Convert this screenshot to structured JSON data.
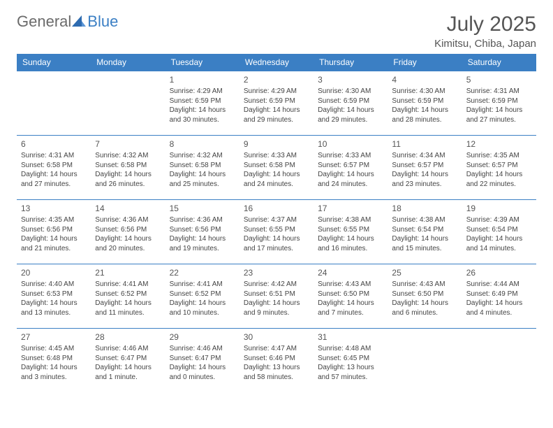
{
  "brand": {
    "name1": "General",
    "name2": "Blue"
  },
  "title": "July 2025",
  "location": "Kimitsu, Chiba, Japan",
  "colors": {
    "accent": "#3b7fc4",
    "text": "#444444",
    "headerText": "#ffffff",
    "bg": "#ffffff"
  },
  "daysOfWeek": [
    "Sunday",
    "Monday",
    "Tuesday",
    "Wednesday",
    "Thursday",
    "Friday",
    "Saturday"
  ],
  "weeks": [
    [
      null,
      null,
      {
        "n": "1",
        "sr": "4:29 AM",
        "ss": "6:59 PM",
        "dl": "14 hours and 30 minutes."
      },
      {
        "n": "2",
        "sr": "4:29 AM",
        "ss": "6:59 PM",
        "dl": "14 hours and 29 minutes."
      },
      {
        "n": "3",
        "sr": "4:30 AM",
        "ss": "6:59 PM",
        "dl": "14 hours and 29 minutes."
      },
      {
        "n": "4",
        "sr": "4:30 AM",
        "ss": "6:59 PM",
        "dl": "14 hours and 28 minutes."
      },
      {
        "n": "5",
        "sr": "4:31 AM",
        "ss": "6:59 PM",
        "dl": "14 hours and 27 minutes."
      }
    ],
    [
      {
        "n": "6",
        "sr": "4:31 AM",
        "ss": "6:58 PM",
        "dl": "14 hours and 27 minutes."
      },
      {
        "n": "7",
        "sr": "4:32 AM",
        "ss": "6:58 PM",
        "dl": "14 hours and 26 minutes."
      },
      {
        "n": "8",
        "sr": "4:32 AM",
        "ss": "6:58 PM",
        "dl": "14 hours and 25 minutes."
      },
      {
        "n": "9",
        "sr": "4:33 AM",
        "ss": "6:58 PM",
        "dl": "14 hours and 24 minutes."
      },
      {
        "n": "10",
        "sr": "4:33 AM",
        "ss": "6:57 PM",
        "dl": "14 hours and 24 minutes."
      },
      {
        "n": "11",
        "sr": "4:34 AM",
        "ss": "6:57 PM",
        "dl": "14 hours and 23 minutes."
      },
      {
        "n": "12",
        "sr": "4:35 AM",
        "ss": "6:57 PM",
        "dl": "14 hours and 22 minutes."
      }
    ],
    [
      {
        "n": "13",
        "sr": "4:35 AM",
        "ss": "6:56 PM",
        "dl": "14 hours and 21 minutes."
      },
      {
        "n": "14",
        "sr": "4:36 AM",
        "ss": "6:56 PM",
        "dl": "14 hours and 20 minutes."
      },
      {
        "n": "15",
        "sr": "4:36 AM",
        "ss": "6:56 PM",
        "dl": "14 hours and 19 minutes."
      },
      {
        "n": "16",
        "sr": "4:37 AM",
        "ss": "6:55 PM",
        "dl": "14 hours and 17 minutes."
      },
      {
        "n": "17",
        "sr": "4:38 AM",
        "ss": "6:55 PM",
        "dl": "14 hours and 16 minutes."
      },
      {
        "n": "18",
        "sr": "4:38 AM",
        "ss": "6:54 PM",
        "dl": "14 hours and 15 minutes."
      },
      {
        "n": "19",
        "sr": "4:39 AM",
        "ss": "6:54 PM",
        "dl": "14 hours and 14 minutes."
      }
    ],
    [
      {
        "n": "20",
        "sr": "4:40 AM",
        "ss": "6:53 PM",
        "dl": "14 hours and 13 minutes."
      },
      {
        "n": "21",
        "sr": "4:41 AM",
        "ss": "6:52 PM",
        "dl": "14 hours and 11 minutes."
      },
      {
        "n": "22",
        "sr": "4:41 AM",
        "ss": "6:52 PM",
        "dl": "14 hours and 10 minutes."
      },
      {
        "n": "23",
        "sr": "4:42 AM",
        "ss": "6:51 PM",
        "dl": "14 hours and 9 minutes."
      },
      {
        "n": "24",
        "sr": "4:43 AM",
        "ss": "6:50 PM",
        "dl": "14 hours and 7 minutes."
      },
      {
        "n": "25",
        "sr": "4:43 AM",
        "ss": "6:50 PM",
        "dl": "14 hours and 6 minutes."
      },
      {
        "n": "26",
        "sr": "4:44 AM",
        "ss": "6:49 PM",
        "dl": "14 hours and 4 minutes."
      }
    ],
    [
      {
        "n": "27",
        "sr": "4:45 AM",
        "ss": "6:48 PM",
        "dl": "14 hours and 3 minutes."
      },
      {
        "n": "28",
        "sr": "4:46 AM",
        "ss": "6:47 PM",
        "dl": "14 hours and 1 minute."
      },
      {
        "n": "29",
        "sr": "4:46 AM",
        "ss": "6:47 PM",
        "dl": "14 hours and 0 minutes."
      },
      {
        "n": "30",
        "sr": "4:47 AM",
        "ss": "6:46 PM",
        "dl": "13 hours and 58 minutes."
      },
      {
        "n": "31",
        "sr": "4:48 AM",
        "ss": "6:45 PM",
        "dl": "13 hours and 57 minutes."
      },
      null,
      null
    ]
  ],
  "labels": {
    "sunrise": "Sunrise:",
    "sunset": "Sunset:",
    "daylight": "Daylight:"
  }
}
